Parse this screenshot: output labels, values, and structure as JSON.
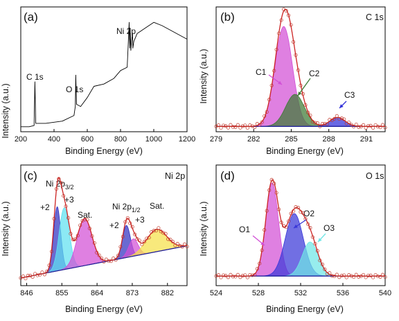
{
  "chart_data": [
    {
      "panel": "(a)",
      "type": "line",
      "xlabel": "Binding Energy (eV)",
      "ylabel": "Intensity (a.u.)",
      "xlim": [
        200,
        1200
      ],
      "xticks": [
        "200",
        "400",
        "600",
        "800",
        "1000",
        "1200"
      ],
      "annotations": [
        {
          "text": "C 1s",
          "x": 285
        },
        {
          "text": "O 1s",
          "x": 531
        },
        {
          "text": "Ni 2p",
          "x": 855
        }
      ],
      "series": [
        {
          "color": "#000000",
          "x": [
            200,
            250,
            280,
            285,
            290,
            350,
            450,
            520,
            528,
            531,
            535,
            560,
            600,
            640,
            700,
            760,
            800,
            840,
            852,
            855,
            858,
            862,
            866,
            872,
            874,
            880,
            900,
            950,
            1000,
            1050,
            1100,
            1150,
            1200
          ],
          "y": [
            0.02,
            0.02,
            0.03,
            0.42,
            0.05,
            0.05,
            0.07,
            0.12,
            0.2,
            0.48,
            0.22,
            0.2,
            0.28,
            0.38,
            0.4,
            0.45,
            0.52,
            0.55,
            0.95,
            0.72,
            0.9,
            0.7,
            0.78,
            0.85,
            0.72,
            0.78,
            0.85,
            0.9,
            0.95,
            0.92,
            0.88,
            0.84,
            0.8
          ]
        }
      ]
    },
    {
      "panel": "(b)",
      "type": "area",
      "title": "C 1s",
      "xlabel": "Binding Energy (eV)",
      "ylabel": "Intensity (a.u.)",
      "xlim": [
        279,
        292.5
      ],
      "xticks": [
        "279",
        "282",
        "285",
        "288",
        "291"
      ],
      "peaks": [
        {
          "name": "C1",
          "center": 284.4,
          "amplitude": 0.78,
          "width": 0.7,
          "color": "#d24fd6"
        },
        {
          "name": "C2",
          "center": 285.3,
          "amplitude": 0.25,
          "width": 0.75,
          "color": "#3d7a35"
        },
        {
          "name": "C3",
          "center": 288.7,
          "amplitude": 0.07,
          "width": 0.6,
          "color": "#3131d8"
        }
      ],
      "baseline": 0.02
    },
    {
      "panel": "(c)",
      "type": "area",
      "title": "Ni 2p",
      "xlabel": "Binding Energy (eV)",
      "ylabel": "Intensity (a.u.)",
      "xlim": [
        844.5,
        887
      ],
      "xticks": [
        "846",
        "855",
        "864",
        "873",
        "882"
      ],
      "annotations": [
        {
          "text": "Ni 2p",
          "sub": "3/2"
        },
        {
          "text": "Ni 2p",
          "sub": "1/2"
        },
        {
          "text": "+2"
        },
        {
          "text": "+3"
        },
        {
          "text": "Sat."
        },
        {
          "text": "+2"
        },
        {
          "text": "+3"
        },
        {
          "text": "Sat."
        }
      ],
      "peaks": [
        {
          "name": "+2",
          "center": 853.8,
          "amplitude": 0.52,
          "width": 0.9,
          "color": "#3030c0"
        },
        {
          "name": "+3",
          "center": 855.6,
          "amplitude": 0.5,
          "width": 1.3,
          "color": "#5fe0f0"
        },
        {
          "name": "Sat.",
          "center": 860.8,
          "amplitude": 0.38,
          "width": 1.9,
          "color": "#d24fd6"
        },
        {
          "name": "+2",
          "center": 871.5,
          "amplitude": 0.26,
          "width": 1.0,
          "color": "#3030c0"
        },
        {
          "name": "+3",
          "center": 873.3,
          "amplitude": 0.14,
          "width": 1.2,
          "color": "#d24fd6"
        },
        {
          "name": "Sat.",
          "center": 879.2,
          "amplitude": 0.18,
          "width": 2.6,
          "color": "#f5e14a"
        }
      ],
      "baseline_start": 0.04,
      "baseline_end": 0.3
    },
    {
      "panel": "(d)",
      "type": "area",
      "title": "O 1s",
      "xlabel": "Binding Energy (eV)",
      "ylabel": "Intensity (a.u.)",
      "xlim": [
        524,
        540
      ],
      "xticks": [
        "524",
        "528",
        "532",
        "536",
        "540"
      ],
      "peaks": [
        {
          "name": "O1",
          "center": 529.3,
          "amplitude": 0.82,
          "width": 0.6,
          "color": "#d24fd6"
        },
        {
          "name": "O2",
          "center": 531.4,
          "amplitude": 0.55,
          "width": 0.85,
          "color": "#3a38d8"
        },
        {
          "name": "O3",
          "center": 532.9,
          "amplitude": 0.3,
          "width": 0.75,
          "color": "#6fe6e6"
        }
      ],
      "baseline": 0.06
    }
  ]
}
